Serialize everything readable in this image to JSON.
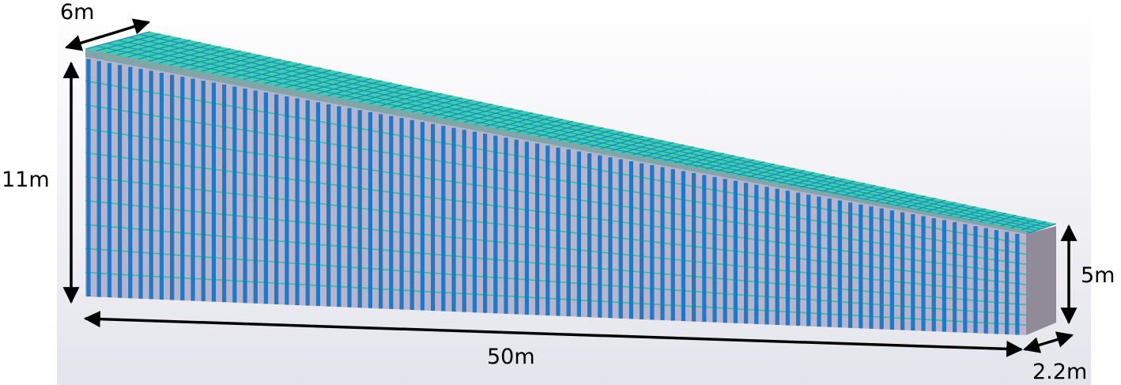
{
  "dimensions": {
    "top_width": "6m",
    "left_height": "11m",
    "right_height": "5m",
    "length": "50m",
    "end_width": "2.2m"
  },
  "colors": {
    "background_top": "#ffffff",
    "background_bottom": "#e6e6ee",
    "side_face": "#b7b4cc",
    "vertical_stiffener": "#1f78c8",
    "horizontal_line": "#2bc39a",
    "top_face": "#3ecfb0",
    "top_grid": "#1a8fb5",
    "end_face": "#8f8b98",
    "arrow": "#000000"
  }
}
